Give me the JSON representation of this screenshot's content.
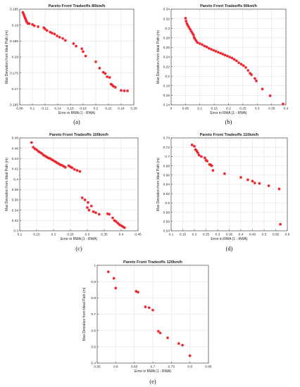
{
  "chart_data": [
    {
      "panel": "(a)",
      "type": "scatter",
      "title": "Pareto Front Tradeoffs 80km/h",
      "xlabel": "Error in RWA (1 - RWA)",
      "ylabel": "Max Deviation from Ideal Path (m)",
      "xlim": [
        0.08,
        0.26
      ],
      "ylim": [
        0.165,
        0.195
      ],
      "xticks": [
        "0.08",
        "0.1",
        "0.12",
        "0.14",
        "0.16",
        "0.18",
        "0.2",
        "0.22",
        "0.24",
        "0.26"
      ],
      "yticks": [
        "0.165",
        "0.17",
        "0.175",
        "0.18",
        "0.185",
        "0.19",
        "0.195"
      ],
      "grid": true,
      "marker_color": "#e8202a",
      "series": [
        {
          "x": [
            0.085,
            0.086,
            0.087,
            0.088,
            0.089,
            0.09,
            0.091,
            0.093,
            0.095,
            0.1,
            0.103,
            0.109,
            0.118,
            0.12,
            0.123,
            0.128,
            0.131,
            0.135,
            0.139,
            0.143,
            0.148,
            0.152,
            0.165,
            0.169,
            0.178,
            0.18,
            0.184,
            0.2,
            0.206,
            0.212,
            0.215,
            0.218,
            0.222,
            0.224,
            0.226,
            0.228,
            0.231,
            0.24,
            0.245,
            0.25
          ],
          "y": [
            0.194,
            0.1935,
            0.193,
            0.1925,
            0.192,
            0.1915,
            0.191,
            0.1905,
            0.1905,
            0.1902,
            0.1898,
            0.1895,
            0.1892,
            0.1888,
            0.1883,
            0.1878,
            0.1875,
            0.1872,
            0.1866,
            0.1862,
            0.1858,
            0.1852,
            0.1842,
            0.1834,
            0.1826,
            0.1817,
            0.1803,
            0.1785,
            0.1765,
            0.1752,
            0.1748,
            0.1738,
            0.1736,
            0.1715,
            0.1712,
            0.1708,
            0.1705,
            0.1695,
            0.1694,
            0.1694
          ]
        }
      ]
    },
    {
      "panel": "(b)",
      "type": "scatter",
      "title": "Pareto Front Tradeoffs 90km/h",
      "xlabel": "Error in RWA (1 - RWA)",
      "ylabel": "Max Deviation from Ideal Path (m)",
      "xlim": [
        0,
        0.4
      ],
      "ylim": [
        0.14,
        0.34
      ],
      "xticks": [
        "0",
        "0.05",
        "0.1",
        "0.15",
        "0.2",
        "0.25",
        "0.3",
        "0.35",
        "0.4"
      ],
      "yticks": [
        "0.14",
        "0.16",
        "0.18",
        "0.2",
        "0.22",
        "0.24",
        "0.26",
        "0.28",
        "0.3",
        "0.32",
        "0.34"
      ],
      "grid": true,
      "marker_color": "#e8202a",
      "series": [
        {
          "x": [
            0.05,
            0.052,
            0.055,
            0.058,
            0.062,
            0.066,
            0.07,
            0.074,
            0.078,
            0.08,
            0.083,
            0.087,
            0.092,
            0.1,
            0.108,
            0.116,
            0.124,
            0.132,
            0.14,
            0.148,
            0.156,
            0.164,
            0.172,
            0.18,
            0.188,
            0.196,
            0.204,
            0.212,
            0.22,
            0.228,
            0.236,
            0.244,
            0.252,
            0.26,
            0.268,
            0.275,
            0.28,
            0.292,
            0.297,
            0.318,
            0.345,
            0.39
          ],
          "y": [
            0.321,
            0.315,
            0.31,
            0.306,
            0.302,
            0.298,
            0.294,
            0.29,
            0.286,
            0.281,
            0.278,
            0.274,
            0.27,
            0.268,
            0.266,
            0.263,
            0.261,
            0.258,
            0.256,
            0.254,
            0.252,
            0.25,
            0.248,
            0.246,
            0.244,
            0.242,
            0.24,
            0.238,
            0.235,
            0.232,
            0.228,
            0.225,
            0.222,
            0.218,
            0.212,
            0.206,
            0.203,
            0.195,
            0.19,
            0.173,
            0.159,
            0.142
          ]
        }
      ]
    },
    {
      "panel": "(c)",
      "type": "scatter",
      "title": "Pareto Front Tradeoffs 100km/h",
      "xlabel": "Error in RWA (1 - RWA)",
      "ylabel": "Max Deviation from Ideal Path (m)",
      "xlim": [
        0.1,
        0.45
      ],
      "ylim": [
        0.3,
        0.48
      ],
      "xticks": [
        "0.1",
        "0.15",
        "0.2",
        "0.25",
        "0.3",
        "0.35",
        "0.4",
        "0.45"
      ],
      "yticks": [
        "0.3",
        "0.32",
        "0.34",
        "0.36",
        "0.38",
        "0.4",
        "0.42",
        "0.44",
        "0.46",
        "0.48"
      ],
      "grid": true,
      "marker_color": "#e8202a",
      "series": [
        {
          "x": [
            0.135,
            0.14,
            0.145,
            0.15,
            0.155,
            0.16,
            0.165,
            0.17,
            0.175,
            0.18,
            0.185,
            0.19,
            0.195,
            0.2,
            0.205,
            0.21,
            0.215,
            0.22,
            0.225,
            0.23,
            0.235,
            0.245,
            0.25,
            0.255,
            0.262,
            0.27,
            0.278,
            0.285,
            0.293,
            0.3,
            0.302,
            0.305,
            0.312,
            0.318,
            0.325,
            0.335,
            0.36,
            0.365,
            0.375,
            0.38,
            0.385,
            0.39,
            0.395,
            0.4,
            0.405,
            0.41
          ],
          "y": [
            0.471,
            0.462,
            0.459,
            0.457,
            0.454,
            0.452,
            0.45,
            0.447,
            0.445,
            0.443,
            0.441,
            0.44,
            0.438,
            0.436,
            0.434,
            0.432,
            0.43,
            0.428,
            0.427,
            0.425,
            0.423,
            0.426,
            0.424,
            0.422,
            0.419,
            0.417,
            0.415,
            0.364,
            0.36,
            0.345,
            0.355,
            0.34,
            0.348,
            0.337,
            0.335,
            0.332,
            0.333,
            0.332,
            0.325,
            0.32,
            0.318,
            0.315,
            0.312,
            0.31,
            0.308,
            0.306
          ]
        }
      ]
    },
    {
      "panel": "(d)",
      "type": "scatter",
      "title": "Pareto Front Tradeoffs 110km/h",
      "xlabel": "Error in RWA (1 - RWA)",
      "ylabel": "Max Deviation from Ideal Path (m)",
      "xlim": [
        0.1,
        0.6
      ],
      "ylim": [
        0.54,
        0.74
      ],
      "xticks": [
        "0.1",
        "0.15",
        "0.2",
        "0.25",
        "0.3",
        "0.35",
        "0.4",
        "0.45",
        "0.5",
        "0.55",
        "0.6"
      ],
      "yticks": [
        "0.54",
        "0.56",
        "0.58",
        "0.6",
        "0.62",
        "0.64",
        "0.66",
        "0.68",
        "0.7",
        "0.72",
        "0.74"
      ],
      "grid": true,
      "marker_color": "#e8202a",
      "series": [
        {
          "x": [
            0.19,
            0.2,
            0.205,
            0.21,
            0.215,
            0.22,
            0.23,
            0.245,
            0.25,
            0.255,
            0.265,
            0.27,
            0.275,
            0.28,
            0.33,
            0.4,
            0.43,
            0.45,
            0.46,
            0.48,
            0.52,
            0.565,
            0.57
          ],
          "y": [
            0.725,
            0.722,
            0.715,
            0.712,
            0.708,
            0.703,
            0.7,
            0.697,
            0.692,
            0.69,
            0.683,
            0.682,
            0.68,
            0.67,
            0.663,
            0.655,
            0.65,
            0.647,
            0.643,
            0.642,
            0.637,
            0.63,
            0.554
          ]
        }
      ]
    },
    {
      "panel": "(e)",
      "type": "scatter",
      "title": "Pareto Front Tradeoffs 120km/h",
      "xlabel": "Error in RWA (1 - RWA)",
      "ylabel": "Max Deviation from Ideal Path (m)",
      "xlim": [
        0.55,
        0.85
      ],
      "ylim": [
        0.4,
        1
      ],
      "xticks": [
        "0.55",
        "0.6",
        "0.65",
        "0.7",
        "0.75",
        "0.8",
        "0.85"
      ],
      "yticks": [
        "0.4",
        "0.5",
        "0.6",
        "0.7",
        "0.8",
        "0.9",
        "1"
      ],
      "grid": true,
      "marker_color": "#e8202a",
      "series": [
        {
          "x": [
            0.58,
            0.595,
            0.6,
            0.655,
            0.66,
            0.68,
            0.69,
            0.7,
            0.715,
            0.72,
            0.74,
            0.77,
            0.78,
            0.8
          ],
          "y": [
            0.96,
            0.92,
            0.86,
            0.84,
            0.835,
            0.745,
            0.74,
            0.725,
            0.595,
            0.585,
            0.555,
            0.52,
            0.51,
            0.445
          ]
        }
      ]
    }
  ]
}
